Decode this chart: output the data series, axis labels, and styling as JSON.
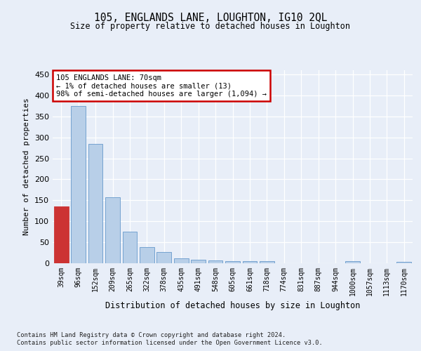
{
  "title1": "105, ENGLANDS LANE, LOUGHTON, IG10 2QL",
  "title2": "Size of property relative to detached houses in Loughton",
  "xlabel": "Distribution of detached houses by size in Loughton",
  "ylabel": "Number of detached properties",
  "categories": [
    "39sqm",
    "96sqm",
    "152sqm",
    "209sqm",
    "265sqm",
    "322sqm",
    "378sqm",
    "435sqm",
    "491sqm",
    "548sqm",
    "605sqm",
    "661sqm",
    "718sqm",
    "774sqm",
    "831sqm",
    "887sqm",
    "944sqm",
    "1000sqm",
    "1057sqm",
    "1113sqm",
    "1170sqm"
  ],
  "values": [
    135,
    375,
    285,
    157,
    75,
    38,
    27,
    12,
    8,
    6,
    5,
    5,
    5,
    0,
    0,
    0,
    0,
    5,
    0,
    0,
    4
  ],
  "bar_color": "#b8cfe8",
  "bar_edge_color": "#6699cc",
  "highlight_bar_index": 0,
  "highlight_bar_color": "#cc3333",
  "annotation_text": "105 ENGLANDS LANE: 70sqm\n← 1% of detached houses are smaller (13)\n98% of semi-detached houses are larger (1,094) →",
  "annotation_box_color": "#ffffff",
  "annotation_box_edge": "#cc0000",
  "ylim": [
    0,
    460
  ],
  "yticks": [
    0,
    50,
    100,
    150,
    200,
    250,
    300,
    350,
    400,
    450
  ],
  "footer1": "Contains HM Land Registry data © Crown copyright and database right 2024.",
  "footer2": "Contains public sector information licensed under the Open Government Licence v3.0.",
  "bg_color": "#e8eef8",
  "plot_bg_color": "#e8eef8"
}
